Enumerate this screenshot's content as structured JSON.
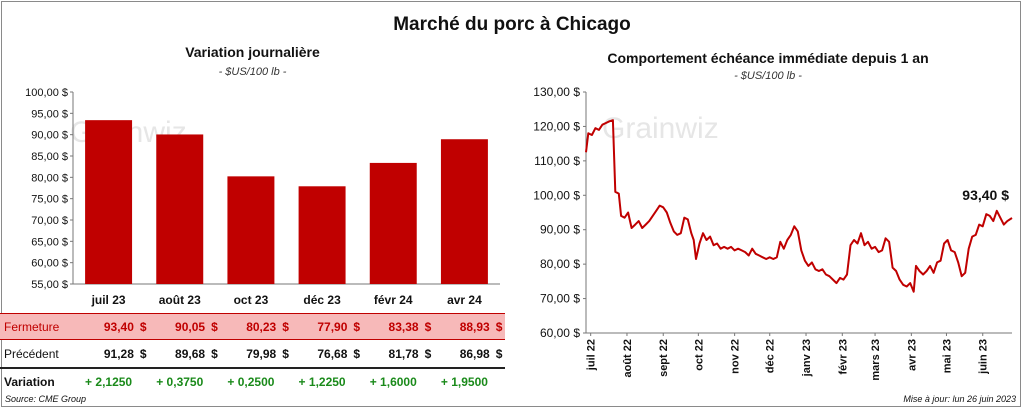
{
  "title": "Marché du porc à Chicago",
  "left": {
    "subtitle": "Variation  journalière",
    "unit": "- $US/100 lb -",
    "watermark": "Grainwiz"
  },
  "right": {
    "subtitle": "Comportement  échéance  immédiate  depuis  1  an",
    "unit": "- $US/100 lb -",
    "watermark": "Grainwiz",
    "last_value_label": "93,40 $"
  },
  "table": {
    "fermeture_label": "Fermeture",
    "precedent_label": "Précédent",
    "variation_label": "Variation",
    "fermeture": [
      "93,40",
      "90,05",
      "80,23",
      "77,90",
      "83,38",
      "88,93"
    ],
    "precedent": [
      "91,28",
      "89,68",
      "79,98",
      "76,68",
      "81,78",
      "86,98"
    ],
    "variation": [
      "+ 2,1250",
      "+ 0,3750",
      "+ 0,2500",
      "+ 1,2250",
      "+ 1,6000",
      "+ 1,9500"
    ],
    "currency": "$"
  },
  "source": "Source: CME Group",
  "update": "Mise à jour: lun 26 juin 2023",
  "colors": {
    "bar": "#c00000",
    "line": "#c00000",
    "fermeture_bg": "#f7b9b9",
    "variation": "#1a8a1a"
  },
  "chart_data": [
    {
      "type": "bar",
      "title": "Variation  journalière",
      "categories": [
        "juil 23",
        "août 23",
        "oct 23",
        "déc 23",
        "févr 24",
        "avr 24"
      ],
      "values": [
        93.4,
        90.05,
        80.23,
        77.9,
        83.38,
        88.93
      ],
      "ylim": [
        55,
        100
      ],
      "yticks": [
        55,
        60,
        65,
        70,
        75,
        80,
        85,
        90,
        95,
        100
      ],
      "ytick_labels": [
        "55,00 $",
        "60,00 $",
        "65,00 $",
        "70,00 $",
        "75,00 $",
        "80,00 $",
        "85,00 $",
        "90,00 $",
        "95,00 $",
        "100,00 $"
      ],
      "grid": false
    },
    {
      "type": "line",
      "title": "Comportement  échéance  immédiate  depuis  1  an",
      "ylim": [
        60,
        130
      ],
      "yticks": [
        60,
        70,
        80,
        90,
        100,
        110,
        120,
        130
      ],
      "ytick_labels": [
        "60,00 $",
        "70,00 $",
        "80,00 $",
        "90,00 $",
        "100,00 $",
        "110,00 $",
        "120,00 $",
        "130,00 $"
      ],
      "xlim": [
        "2022-06-27",
        "2023-06-26"
      ],
      "xticks": [
        "2022-07-01",
        "2022-08-01",
        "2022-09-01",
        "2022-10-01",
        "2022-11-01",
        "2022-12-01",
        "2023-01-01",
        "2023-02-01",
        "2023-03-01",
        "2023-04-01",
        "2023-05-01",
        "2023-06-01"
      ],
      "xtick_labels": [
        "juil 22",
        "août 22",
        "sept 22",
        "oct 22",
        "nov 22",
        "déc 22",
        "janv 23",
        "févr 23",
        "mars 23",
        "avr 23",
        "mai 23",
        "juin 23"
      ],
      "grid": false,
      "series": [
        {
          "points": [
            [
              "2022-06-27",
              112.5
            ],
            [
              "2022-06-29",
              118.0
            ],
            [
              "2022-07-02",
              117.5
            ],
            [
              "2022-07-05",
              119.5
            ],
            [
              "2022-07-08",
              119.0
            ],
            [
              "2022-07-11",
              120.5
            ],
            [
              "2022-07-14",
              121.0
            ],
            [
              "2022-07-17",
              121.5
            ],
            [
              "2022-07-20",
              121.8
            ],
            [
              "2022-07-22",
              101.0
            ],
            [
              "2022-07-25",
              100.5
            ],
            [
              "2022-07-27",
              94.0
            ],
            [
              "2022-07-30",
              93.5
            ],
            [
              "2022-08-02",
              95.0
            ],
            [
              "2022-08-05",
              90.5
            ],
            [
              "2022-08-08",
              91.5
            ],
            [
              "2022-08-11",
              92.5
            ],
            [
              "2022-08-14",
              90.5
            ],
            [
              "2022-08-17",
              91.5
            ],
            [
              "2022-08-20",
              92.5
            ],
            [
              "2022-08-23",
              94.0
            ],
            [
              "2022-08-26",
              95.5
            ],
            [
              "2022-08-29",
              97.0
            ],
            [
              "2022-09-01",
              96.5
            ],
            [
              "2022-09-04",
              95.0
            ],
            [
              "2022-09-07",
              92.0
            ],
            [
              "2022-09-10",
              89.5
            ],
            [
              "2022-09-13",
              88.5
            ],
            [
              "2022-09-16",
              89.0
            ],
            [
              "2022-09-19",
              93.5
            ],
            [
              "2022-09-22",
              93.0
            ],
            [
              "2022-09-25",
              89.0
            ],
            [
              "2022-09-27",
              87.0
            ],
            [
              "2022-09-29",
              81.5
            ],
            [
              "2022-10-02",
              86.0
            ],
            [
              "2022-10-05",
              89.0
            ],
            [
              "2022-10-08",
              87.0
            ],
            [
              "2022-10-11",
              88.0
            ],
            [
              "2022-10-14",
              85.5
            ],
            [
              "2022-10-17",
              86.0
            ],
            [
              "2022-10-20",
              84.5
            ],
            [
              "2022-10-23",
              85.0
            ],
            [
              "2022-10-26",
              84.5
            ],
            [
              "2022-10-29",
              85.0
            ],
            [
              "2022-11-01",
              84.0
            ],
            [
              "2022-11-04",
              84.5
            ],
            [
              "2022-11-07",
              84.0
            ],
            [
              "2022-11-10",
              83.5
            ],
            [
              "2022-11-13",
              82.5
            ],
            [
              "2022-11-16",
              84.5
            ],
            [
              "2022-11-19",
              83.0
            ],
            [
              "2022-11-22",
              82.5
            ],
            [
              "2022-11-25",
              82.0
            ],
            [
              "2022-11-28",
              81.5
            ],
            [
              "2022-12-01",
              82.0
            ],
            [
              "2022-12-04",
              81.5
            ],
            [
              "2022-12-07",
              82.0
            ],
            [
              "2022-12-10",
              86.5
            ],
            [
              "2022-12-13",
              84.5
            ],
            [
              "2022-12-16",
              87.0
            ],
            [
              "2022-12-19",
              88.5
            ],
            [
              "2022-12-22",
              91.0
            ],
            [
              "2022-12-25",
              89.5
            ],
            [
              "2022-12-28",
              84.0
            ],
            [
              "2022-12-31",
              81.0
            ],
            [
              "2023-01-03",
              79.5
            ],
            [
              "2023-01-06",
              80.5
            ],
            [
              "2023-01-09",
              78.5
            ],
            [
              "2023-01-12",
              78.0
            ],
            [
              "2023-01-15",
              78.5
            ],
            [
              "2023-01-18",
              77.0
            ],
            [
              "2023-01-21",
              76.5
            ],
            [
              "2023-01-24",
              75.5
            ],
            [
              "2023-01-27",
              74.5
            ],
            [
              "2023-01-30",
              76.0
            ],
            [
              "2023-02-02",
              75.5
            ],
            [
              "2023-02-05",
              77.0
            ],
            [
              "2023-02-08",
              85.5
            ],
            [
              "2023-02-11",
              87.0
            ],
            [
              "2023-02-14",
              86.0
            ],
            [
              "2023-02-17",
              89.0
            ],
            [
              "2023-02-20",
              85.5
            ],
            [
              "2023-02-23",
              86.5
            ],
            [
              "2023-02-26",
              84.5
            ],
            [
              "2023-03-01",
              85.0
            ],
            [
              "2023-03-04",
              83.5
            ],
            [
              "2023-03-07",
              84.0
            ],
            [
              "2023-03-10",
              87.5
            ],
            [
              "2023-03-13",
              86.5
            ],
            [
              "2023-03-16",
              79.0
            ],
            [
              "2023-03-19",
              78.0
            ],
            [
              "2023-03-22",
              75.5
            ],
            [
              "2023-03-25",
              74.0
            ],
            [
              "2023-03-28",
              73.5
            ],
            [
              "2023-03-31",
              74.5
            ],
            [
              "2023-04-03",
              72.0
            ],
            [
              "2023-04-05",
              79.5
            ],
            [
              "2023-04-08",
              78.0
            ],
            [
              "2023-04-11",
              77.0
            ],
            [
              "2023-04-14",
              78.0
            ],
            [
              "2023-04-17",
              79.5
            ],
            [
              "2023-04-20",
              77.5
            ],
            [
              "2023-04-23",
              80.5
            ],
            [
              "2023-04-26",
              81.0
            ],
            [
              "2023-04-29",
              86.0
            ],
            [
              "2023-05-02",
              87.0
            ],
            [
              "2023-05-05",
              84.0
            ],
            [
              "2023-05-08",
              83.5
            ],
            [
              "2023-05-11",
              80.5
            ],
            [
              "2023-05-14",
              76.5
            ],
            [
              "2023-05-17",
              77.5
            ],
            [
              "2023-05-20",
              84.5
            ],
            [
              "2023-05-23",
              88.0
            ],
            [
              "2023-05-26",
              88.5
            ],
            [
              "2023-05-29",
              91.5
            ],
            [
              "2023-06-01",
              91.0
            ],
            [
              "2023-06-04",
              94.5
            ],
            [
              "2023-06-07",
              94.0
            ],
            [
              "2023-06-10",
              92.5
            ],
            [
              "2023-06-13",
              95.5
            ],
            [
              "2023-06-16",
              93.5
            ],
            [
              "2023-06-19",
              91.5
            ],
            [
              "2023-06-22",
              92.5
            ],
            [
              "2023-06-26",
              93.4
            ]
          ]
        }
      ]
    }
  ]
}
